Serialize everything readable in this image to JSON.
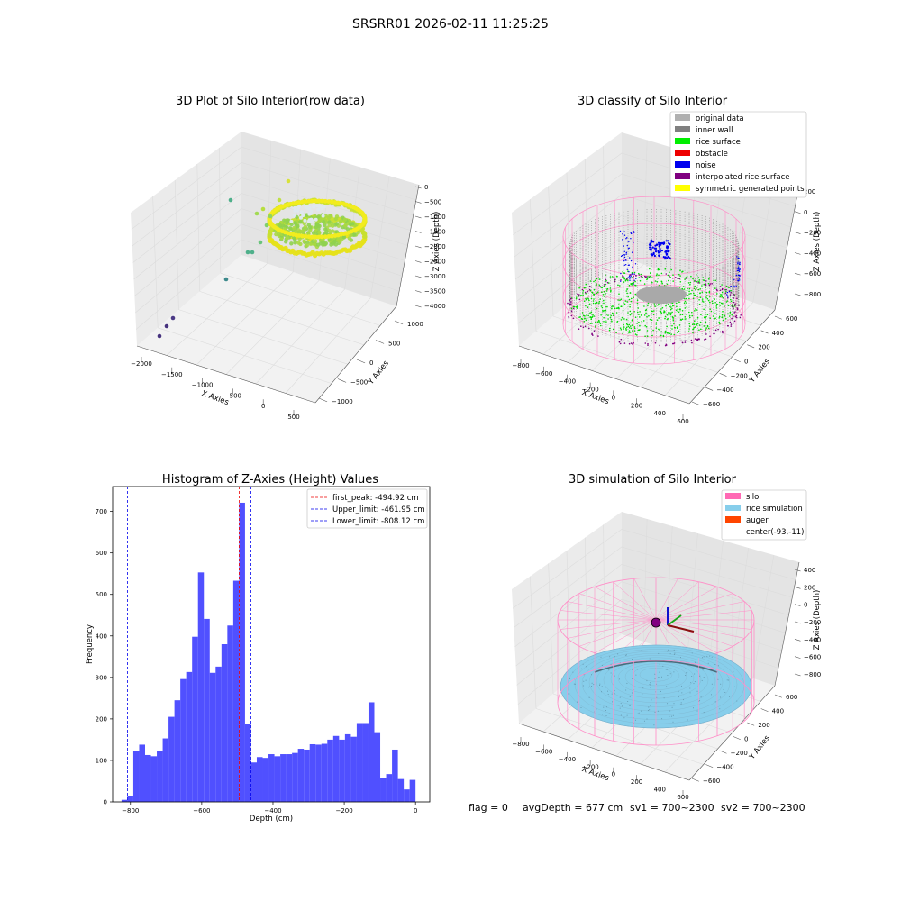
{
  "suptitle": "SRSRR01 2026-02-11 11:25:25",
  "chart_data": [
    {
      "type": "scatter",
      "title": "3D Plot of Silo Interior(row data)",
      "xlabel": "X Axies",
      "ylabel": "Y Axies",
      "zlabel": "Z Axies (Depth)",
      "x_ticks": [
        "−2000",
        "−1500",
        "−1000",
        "−500",
        "0",
        "500"
      ],
      "y_ticks": [
        "−1000",
        "−500",
        "0",
        "500",
        "1000"
      ],
      "z_ticks": [
        "0",
        "−500",
        "−1000",
        "−1500",
        "−2000",
        "−2500",
        "−3000",
        "−3500",
        "−4000"
      ],
      "xlim": [
        -2100,
        700
      ],
      "ylim": [
        -1200,
        1200
      ],
      "zlim": [
        -4000,
        0
      ],
      "colormap": "viridis",
      "outliers": [
        {
          "x": -1900,
          "y": 0,
          "z": -4000
        },
        {
          "x": -1850,
          "y": 50,
          "z": -3800
        },
        {
          "x": -1800,
          "y": 100,
          "z": -3650
        },
        {
          "x": -1200,
          "y": 300,
          "z": -2900
        },
        {
          "x": -1000,
          "y": 500,
          "z": -2000
        },
        {
          "x": -950,
          "y": 500,
          "z": -2000
        },
        {
          "x": -900,
          "y": 600,
          "z": -1650
        },
        {
          "x": -850,
          "y": 650,
          "z": -1300
        },
        {
          "x": -800,
          "y": 700,
          "z": -1150
        }
      ],
      "grid": true
    },
    {
      "type": "scatter",
      "title": "3D classify of Silo Interior",
      "zlabel": "Z Axies (Depth)",
      "xlabel": "X Axies",
      "ylabel": "Y Axies",
      "x_ticks": [
        "−800",
        "−600",
        "−400",
        "−200",
        "0",
        "200",
        "400",
        "600"
      ],
      "y_ticks": [
        "−600",
        "−400",
        "−200",
        "0",
        "200",
        "400",
        "600"
      ],
      "z_ticks": [
        "200",
        "0",
        "−200",
        "−400",
        "−600",
        "−800"
      ],
      "legend": [
        {
          "label": "original data",
          "color": "#b0b0b0"
        },
        {
          "label": "inner wall",
          "color": "#808080"
        },
        {
          "label": "rice surface",
          "color": "#00ee00"
        },
        {
          "label": "obstacle",
          "color": "#ee0000"
        },
        {
          "label": "noise",
          "color": "#0000ee"
        },
        {
          "label": "interpolated rice surface",
          "color": "#800080"
        },
        {
          "label": "symmetric generated points",
          "color": "#ffff00"
        }
      ],
      "legend_placement": "top-right",
      "grid": true
    },
    {
      "type": "bar",
      "title": "Histogram of Z-Axies (Height) Values",
      "xlabel": "Depth (cm)",
      "ylabel": "Frequency",
      "xlim": [
        -850,
        40
      ],
      "ylim": [
        0,
        760
      ],
      "x_ticks": [
        -800,
        -600,
        -400,
        -200,
        0
      ],
      "x_tick_labels": [
        "−800",
        "−600",
        "−400",
        "−200",
        "0"
      ],
      "y_ticks": [
        0,
        100,
        200,
        300,
        400,
        500,
        600,
        700
      ],
      "bin_start": -825,
      "bin_width": 16.5,
      "values": [
        5,
        15,
        122,
        138,
        113,
        110,
        123,
        153,
        205,
        245,
        296,
        313,
        398,
        553,
        441,
        311,
        326,
        380,
        425,
        533,
        721,
        188,
        95,
        108,
        106,
        115,
        110,
        115,
        115,
        118,
        128,
        126,
        139,
        138,
        140,
        150,
        159,
        150,
        163,
        157,
        190,
        190,
        240,
        168,
        57,
        67,
        126,
        55,
        30,
        53
      ],
      "bar_color": "#4d4dff",
      "lines": [
        {
          "label": "first_peak: -494.92 cm",
          "x": -494.92,
          "color": "#ee0000"
        },
        {
          "label": "Upper_limit: -461.95 cm",
          "x": -461.95,
          "color": "#0000ee"
        },
        {
          "label": "Lower_limit: -808.12 cm",
          "x": -808.12,
          "color": "#0000ee"
        }
      ],
      "legend_placement": "top-right",
      "grid": false
    },
    {
      "type": "scatter",
      "title": "3D simulation of Silo Interior",
      "zlabel": "Z Axies (Depth)",
      "xlabel": "X Axies",
      "ylabel": "Y Axies",
      "x_ticks": [
        "−800",
        "−600",
        "−400",
        "−200",
        "0",
        "200",
        "400",
        "600"
      ],
      "y_ticks": [
        "−600",
        "−400",
        "−200",
        "0",
        "200",
        "400",
        "600"
      ],
      "z_ticks": [
        "400",
        "200",
        "0",
        "−200",
        "−400",
        "−600",
        "−800"
      ],
      "legend": [
        {
          "label": "silo",
          "color": "#ff69b4"
        },
        {
          "label": "rice simulation",
          "color": "#87ceeb"
        },
        {
          "label": "auger",
          "color": "#ff4500"
        },
        {
          "label": "center(-93,-11)",
          "color": ""
        }
      ],
      "legend_placement": "top-right",
      "grid": true
    }
  ],
  "status": {
    "flag": "flag = 0",
    "avg": "avgDepth = 677 cm",
    "sv1": "sv1 = 700~2300",
    "sv2": "sv2 = 700~2300"
  }
}
